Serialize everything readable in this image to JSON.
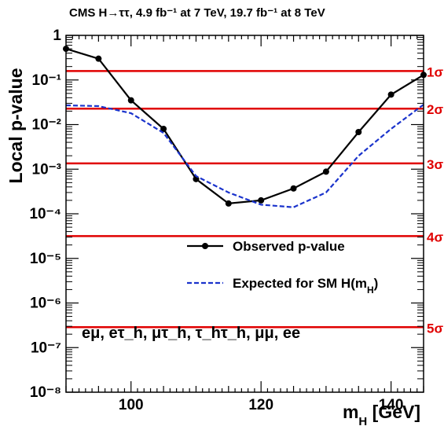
{
  "chart_data": {
    "type": "line",
    "title": "CMS H→ττ, 4.9 fb⁻¹ at 7 TeV, 19.7 fb⁻¹ at 8 TeV",
    "xlabel": "m_H [GeV]",
    "ylabel": "Local p-value",
    "xlim": [
      90,
      145
    ],
    "ylim": [
      1e-08,
      1
    ],
    "yscale": "log",
    "x_ticks": [
      100,
      120,
      140
    ],
    "y_ticks": [
      {
        "value": 1,
        "label": "1"
      },
      {
        "value": 0.1,
        "label": "10⁻¹"
      },
      {
        "value": 0.01,
        "label": "10⁻²"
      },
      {
        "value": 0.001,
        "label": "10⁻³"
      },
      {
        "value": 0.0001,
        "label": "10⁻⁴"
      },
      {
        "value": 1e-05,
        "label": "10⁻⁵"
      },
      {
        "value": 1e-06,
        "label": "10⁻⁶"
      },
      {
        "value": 1e-07,
        "label": "10⁻⁷"
      },
      {
        "value": 1e-08,
        "label": "10⁻⁸"
      }
    ],
    "series": [
      {
        "name": "Observed p-value",
        "style": "solid-markers",
        "color": "#000000",
        "x": [
          90,
          95,
          100,
          105,
          110,
          115,
          120,
          125,
          130,
          135,
          140,
          145
        ],
        "y": [
          0.5,
          0.3,
          0.035,
          0.008,
          0.0006,
          0.00017,
          0.0002,
          0.00037,
          0.00088,
          0.0068,
          0.047,
          0.13
        ]
      },
      {
        "name": "Expected for SM H(m_H)",
        "style": "dashed",
        "color": "#1a33cc",
        "x": [
          90,
          95,
          100,
          105,
          110,
          115,
          120,
          125,
          130,
          135,
          140,
          145
        ],
        "y": [
          0.027,
          0.026,
          0.018,
          0.0065,
          0.0007,
          0.0003,
          0.00016,
          0.00014,
          0.0003,
          0.002,
          0.008,
          0.028
        ]
      }
    ],
    "sigma_lines": [
      {
        "label": "1σ",
        "p": 0.1587
      },
      {
        "label": "2σ",
        "p": 0.02275
      },
      {
        "label": "3σ",
        "p": 0.00135
      },
      {
        "label": "4σ",
        "p": 3.17e-05
      },
      {
        "label": "5σ",
        "p": 2.87e-07
      }
    ],
    "sigma_color": "#e00000",
    "annotation": "eμ, eτ_h, μτ_h, τ_hτ_h, μμ, ee",
    "legend_position": "center-right",
    "grid": false
  }
}
